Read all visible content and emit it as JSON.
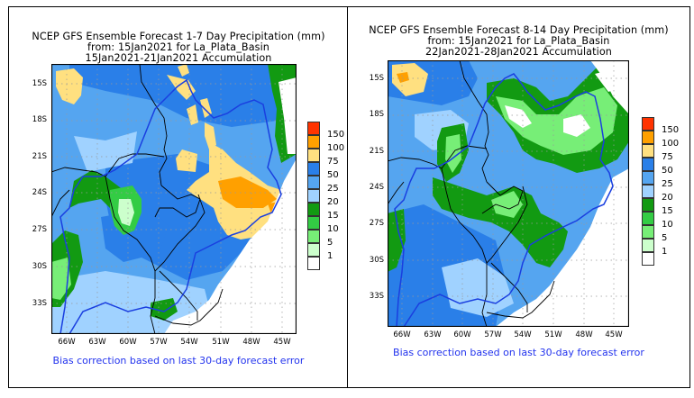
{
  "panels": [
    {
      "title_line1": "NCEP GFS Ensemble Forecast 1-7 Day Precipitation (mm)",
      "title_line2": "from: 15Jan2021   for La_Plata_Basin",
      "title_line3": "15Jan2021-21Jan2021 Accumulation",
      "note": "Bias correction based on last 30-day forecast error"
    },
    {
      "title_line1": "NCEP GFS Ensemble Forecast 8-14 Day Precipitation (mm)",
      "title_line2": "from: 15Jan2021   for La_Plata_Basin",
      "title_line3": "22Jan2021-28Jan2021 Accumulation",
      "note": "Bias correction based on last 30-day forecast error"
    }
  ],
  "lat_labels": [
    "15S",
    "18S",
    "21S",
    "24S",
    "27S",
    "30S",
    "33S"
  ],
  "lon_labels": [
    "66W",
    "63W",
    "60W",
    "57W",
    "54W",
    "51W",
    "48W",
    "45W"
  ],
  "legend": {
    "labels": [
      "150",
      "100",
      "75",
      "50",
      "25",
      "20",
      "15",
      "10",
      "5",
      "1"
    ],
    "colors": [
      "#ff3300",
      "#ffa000",
      "#ffe080",
      "#2a7fe8",
      "#55a5f0",
      "#a0d2ff",
      "#129a12",
      "#33cc44",
      "#77ee77",
      "#ccffcc",
      "#ffffff"
    ]
  },
  "colors": {
    "border": "#000000",
    "basin_line": "#1a3fe0",
    "country_line": "#000000",
    "note_text": "#2233ee"
  }
}
